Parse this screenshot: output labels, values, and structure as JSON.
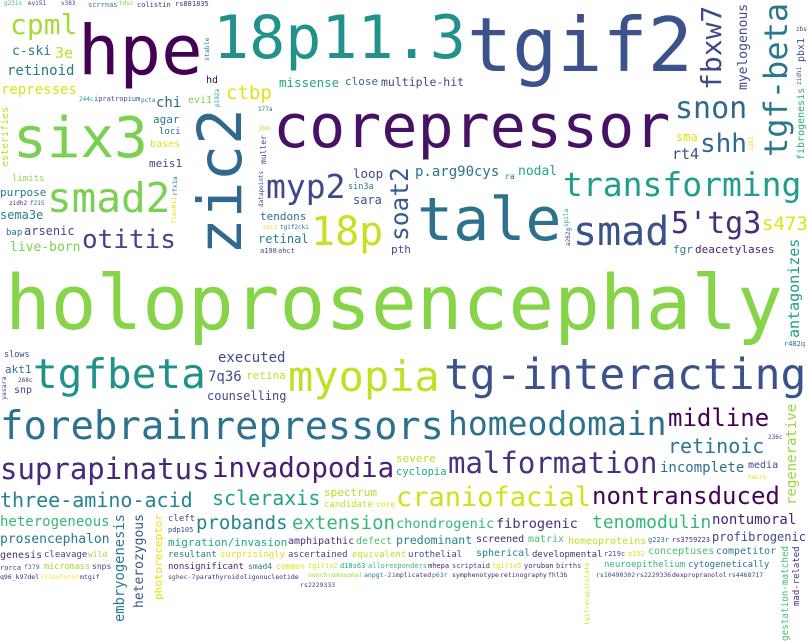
{
  "background": "#ffffff",
  "words": [
    {
      "text": "holoprosencephaly",
      "color": "#86d549"
    },
    {
      "text": "hpe",
      "color": "#440154"
    },
    {
      "text": "18p11.3",
      "color": "#21918c"
    },
    {
      "text": "tgif2",
      "color": "#3b528b"
    },
    {
      "text": "corepressor",
      "color": "#471164"
    },
    {
      "text": "six3",
      "color": "#7ad151"
    },
    {
      "text": "zic2",
      "color": "#31688e"
    },
    {
      "text": "tale",
      "color": "#2c728e"
    },
    {
      "text": "tg-interacting",
      "color": "#3b528b"
    },
    {
      "text": "tgf-beta",
      "color": "#2a788e"
    },
    {
      "text": "transforming",
      "color": "#1f9e89"
    },
    {
      "text": "craniofacial",
      "color": "#d0e11c"
    },
    {
      "text": "snon",
      "color": "#31688e"
    },
    {
      "text": "smad2",
      "color": "#7ad151"
    },
    {
      "text": "5'tg3",
      "color": "#472d7b"
    },
    {
      "text": "homeodomain",
      "color": "#2c728e"
    },
    {
      "text": "repressors",
      "color": "#2c728e"
    },
    {
      "text": "tgfbeta",
      "color": "#21918c"
    },
    {
      "text": "18p",
      "color": "#c8e020"
    },
    {
      "text": "invadopodia",
      "color": "#481f70"
    },
    {
      "text": "malformation",
      "color": "#46327e"
    },
    {
      "text": "midline",
      "color": "#440154"
    },
    {
      "text": "myp2",
      "color": "#3e4989"
    },
    {
      "text": "probands",
      "color": "#25858e"
    },
    {
      "text": "myopia",
      "color": "#c2df23"
    },
    {
      "text": "smad",
      "color": "#3b528b"
    },
    {
      "text": "forebrain",
      "color": "#2c728e"
    },
    {
      "text": "suprapinatus",
      "color": "#482878"
    },
    {
      "text": "otitis",
      "color": "#404688"
    },
    {
      "text": "nontransduced",
      "color": "#450457"
    },
    {
      "text": "extension",
      "color": "#35b779"
    },
    {
      "text": "three-amino-acid",
      "color": "#26828e"
    },
    {
      "text": "cpml",
      "color": "#a5db36"
    },
    {
      "text": "p.arg90cys",
      "color": "#2c728e"
    },
    {
      "text": "3e",
      "color": "#bddf26"
    },
    {
      "text": "c-ski",
      "color": "#2a788e"
    },
    {
      "text": "fbxw7",
      "color": "#3e4989"
    },
    {
      "text": "regenerative",
      "color": "#95d840"
    },
    {
      "text": "screened",
      "color": "#482475"
    },
    {
      "text": "mad-related",
      "color": "#46337e"
    },
    {
      "text": "hd",
      "color": "#440154"
    },
    {
      "text": "arsenic",
      "color": "#3e4989"
    },
    {
      "text": "incomplete",
      "color": "#2c728e"
    },
    {
      "text": "retinoic",
      "color": "#2a788e"
    },
    {
      "text": "chi",
      "color": "#31688e"
    },
    {
      "text": "evi1",
      "color": "#7ad151"
    },
    {
      "text": "rs881835",
      "color": "#472d7b"
    },
    {
      "text": "scrrnas",
      "color": "#2a788e"
    },
    {
      "text": "ipratropium",
      "color": "#3b528b"
    },
    {
      "text": "colistin",
      "color": "#46327e"
    },
    {
      "text": "a190",
      "color": "#3e4989"
    },
    {
      "text": "pdp105",
      "color": "#3e4989"
    },
    {
      "text": "nonchromosomal",
      "color": "#a0da39"
    },
    {
      "text": "tgifrecapitulate",
      "color": "#d0e11c"
    },
    {
      "text": "anpgt-2",
      "color": "#2c728e"
    },
    {
      "text": "f379",
      "color": "#2c728e"
    },
    {
      "text": "core",
      "color": "#dde318"
    },
    {
      "text": "candidate",
      "color": "#c2df23"
    },
    {
      "text": "sin3a",
      "color": "#2a788e"
    },
    {
      "text": "heterogeneous",
      "color": "#35b779"
    },
    {
      "text": "implicated",
      "color": "#46327e"
    },
    {
      "text": "heterozygous",
      "color": "#3b528b"
    },
    {
      "text": "p63r",
      "color": "#2c728e"
    },
    {
      "text": "antagonizes",
      "color": "#1f9e89"
    },
    {
      "text": "photoreceptor",
      "color": "#dde318"
    },
    {
      "text": "gestation-matched",
      "color": "#44bf70"
    },
    {
      "text": "r482q",
      "color": "#2c728e"
    },
    {
      "text": "rfx1a",
      "color": "#2a788e"
    },
    {
      "text": "ahct",
      "color": "#3b528b"
    },
    {
      "text": "g223r",
      "color": "#2c728e"
    },
    {
      "text": "esterifies",
      "color": "#b5de2b"
    },
    {
      "text": "agar",
      "color": "#2a788e"
    },
    {
      "text": "prosencephalon",
      "color": "#2a788e"
    },
    {
      "text": "nontumoral",
      "color": "#482475"
    },
    {
      "text": "migration/invasion",
      "color": "#22a884"
    },
    {
      "text": "rs3759223",
      "color": "#472d7b"
    },
    {
      "text": "symphenotype",
      "color": "#482475"
    },
    {
      "text": "amphipathic",
      "color": "#46327e"
    },
    {
      "text": "retinoid",
      "color": "#2a788e"
    },
    {
      "text": "deacetylases",
      "color": "#482475"
    },
    {
      "text": "tendons",
      "color": "#2c728e"
    },
    {
      "text": "spectrum",
      "color": "#b5de2b"
    },
    {
      "text": "slows",
      "color": "#3e4989"
    },
    {
      "text": "r219c",
      "color": "#3e4989"
    },
    {
      "text": "177a",
      "color": "#2c728e"
    },
    {
      "text": "tdsc",
      "color": "#7ad151"
    },
    {
      "text": "scleraxis",
      "color": "#20a386"
    },
    {
      "text": "loci",
      "color": "#31688e"
    },
    {
      "text": "soat2",
      "color": "#365c8d"
    },
    {
      "text": "muller",
      "color": "#3e4989"
    },
    {
      "text": "datapoints",
      "color": "#3e4989"
    },
    {
      "text": "spila",
      "color": "#22a884"
    },
    {
      "text": "a262g",
      "color": "#3e4989"
    },
    {
      "text": "limits",
      "color": "#95d840"
    },
    {
      "text": "missense",
      "color": "#22a884"
    },
    {
      "text": "bases",
      "color": "#dde318"
    },
    {
      "text": "cleavage",
      "color": "#3e4989"
    },
    {
      "text": "f215",
      "color": "#2c728e"
    },
    {
      "text": "tgif2cki",
      "color": "#2c728e"
    },
    {
      "text": "smad4",
      "color": "#2a788e"
    },
    {
      "text": "matrix",
      "color": "#44bf70"
    },
    {
      "text": "retinography",
      "color": "#482475"
    },
    {
      "text": "ra",
      "color": "#2c728e"
    },
    {
      "text": "cyclopia",
      "color": "#22a884"
    },
    {
      "text": "zidh2",
      "color": "#46327e"
    },
    {
      "text": "rs10490302",
      "color": "#3e4989"
    },
    {
      "text": "common",
      "color": "#dde318"
    },
    {
      "text": "fhl3b",
      "color": "#46327e"
    },
    {
      "text": "rs2229336",
      "color": "#3e4989"
    },
    {
      "text": "purpose",
      "color": "#2a788e"
    },
    {
      "text": "sma",
      "color": "#dde318"
    },
    {
      "text": "sara",
      "color": "#3b528b"
    },
    {
      "text": "resultant",
      "color": "#2a788e"
    },
    {
      "text": "tgif1v2",
      "color": "#dde318"
    },
    {
      "text": "jbo",
      "color": "#a0da39"
    },
    {
      "text": "rt4",
      "color": "#3b528b"
    },
    {
      "text": "surprisingly",
      "color": "#dde318"
    },
    {
      "text": "fibrogenesis",
      "color": "#22a884"
    },
    {
      "text": "pbx1",
      "color": "#3b528b"
    },
    {
      "text": "myelogenous",
      "color": "#3e4989"
    },
    {
      "text": "zidh1",
      "color": "#3e4989"
    },
    {
      "text": "p192",
      "color": "#dde318"
    },
    {
      "text": "244c",
      "color": "#22a884"
    },
    {
      "text": "v383",
      "color": "#3e4989"
    },
    {
      "text": "ascertained",
      "color": "#3e4989"
    },
    {
      "text": "equivalent",
      "color": "#c2df23"
    },
    {
      "text": "dexpropranolol",
      "color": "#482475"
    },
    {
      "text": "rs4468717",
      "color": "#3e4989"
    },
    {
      "text": "counselling",
      "color": "#3e4989"
    },
    {
      "text": "fgr",
      "color": "#26828e"
    },
    {
      "text": "retina",
      "color": "#bddf26"
    },
    {
      "text": "pth",
      "color": "#3e4989"
    },
    {
      "text": "d18s63",
      "color": "#22a884"
    },
    {
      "text": "severe",
      "color": "#c2df23"
    },
    {
      "text": "live-born",
      "color": "#7ad151"
    },
    {
      "text": "snp",
      "color": "#3e4989"
    },
    {
      "text": "multiple-hit",
      "color": "#3e4989"
    },
    {
      "text": "q96_k97del",
      "color": "#482475"
    },
    {
      "text": "homeoproteins",
      "color": "#c2df23"
    },
    {
      "text": "chondrogenic",
      "color": "#35b779"
    },
    {
      "text": "571eufs*43",
      "color": "#fde725"
    },
    {
      "text": "developmental",
      "color": "#46327e"
    },
    {
      "text": "sema3e",
      "color": "#26828e"
    },
    {
      "text": "profibrogenic",
      "color": "#3e4989"
    },
    {
      "text": "neuroepithelium",
      "color": "#35b779"
    },
    {
      "text": "executed",
      "color": "#3e4989"
    },
    {
      "text": "alloresponders",
      "color": "#35b779"
    },
    {
      "text": "mtgif",
      "color": "#46327e"
    },
    {
      "text": "evi51",
      "color": "#46327e"
    },
    {
      "text": "268c",
      "color": "#46327e"
    },
    {
      "text": "g231s",
      "color": "#44bf70"
    },
    {
      "text": "bap",
      "color": "#2c728e"
    },
    {
      "text": "p192a",
      "color": "#22a884"
    },
    {
      "text": "flox011",
      "color": "#dde318"
    },
    {
      "text": "yasara",
      "color": "#3e4989"
    },
    {
      "text": "sghec-7",
      "color": "#3e4989"
    },
    {
      "text": "7q36",
      "color": "#3b528b"
    },
    {
      "text": "retinal",
      "color": "#26828e"
    },
    {
      "text": "akt1",
      "color": "#2c728e"
    },
    {
      "text": "meis1",
      "color": "#3e4989"
    },
    {
      "text": "parathyroid",
      "color": "#482475"
    },
    {
      "text": "mhepa",
      "color": "#482475"
    },
    {
      "text": "predominant",
      "color": "#26828e"
    },
    {
      "text": "conceptuses",
      "color": "#44bf70"
    },
    {
      "text": "wild",
      "color": "#a0da39"
    },
    {
      "text": "scriptaid",
      "color": "#3e4989"
    },
    {
      "text": "media",
      "color": "#3e4989"
    },
    {
      "text": "cytogenetically",
      "color": "#2c728e"
    },
    {
      "text": "nonsignificant",
      "color": "#482475"
    },
    {
      "text": "cvcr",
      "color": "#c2df23"
    },
    {
      "text": "pcta",
      "color": "#2c728e"
    },
    {
      "text": "tenomodulin",
      "color": "#35b779"
    },
    {
      "text": "competitor",
      "color": "#2a788e"
    },
    {
      "text": "nodal",
      "color": "#22a884"
    },
    {
      "text": "cleft",
      "color": "#3e4989"
    },
    {
      "text": "ctbp",
      "color": "#dde318"
    },
    {
      "text": "defect",
      "color": "#44bf70"
    },
    {
      "text": "stable",
      "color": "#2c728e"
    },
    {
      "text": "spherical",
      "color": "#26828e"
    },
    {
      "text": "tgif1v5",
      "color": "#dde318"
    },
    {
      "text": "yoruban",
      "color": "#482475"
    },
    {
      "text": "236c",
      "color": "#3e4989"
    },
    {
      "text": "shh",
      "color": "#31688e"
    },
    {
      "text": "embryogenesis",
      "color": "#2a788e"
    },
    {
      "text": "represses",
      "color": "#dde318"
    },
    {
      "text": "close",
      "color": "#2c728e"
    },
    {
      "text": "fibrogenic",
      "color": "#46327e"
    },
    {
      "text": "births",
      "color": "#3e4989"
    },
    {
      "text": "oligonucleotide",
      "color": "#482475"
    },
    {
      "text": "zbs",
      "color": "#3e4989"
    },
    {
      "text": "hacrs",
      "color": "#dde318"
    },
    {
      "text": "rs2229333",
      "color": "#3e4989"
    },
    {
      "text": "loop",
      "color": "#3e4989"
    },
    {
      "text": "snps",
      "color": "#3e4989"
    },
    {
      "text": "s473",
      "color": "#dde318"
    },
    {
      "text": "genesis",
      "color": "#46327e"
    },
    {
      "text": "1382",
      "color": "#dde318"
    },
    {
      "text": "urothelial",
      "color": "#3e4989"
    },
    {
      "text": "micromass",
      "color": "#a0da39"
    },
    {
      "text": "rorca",
      "color": "#3e4989"
    }
  ]
}
